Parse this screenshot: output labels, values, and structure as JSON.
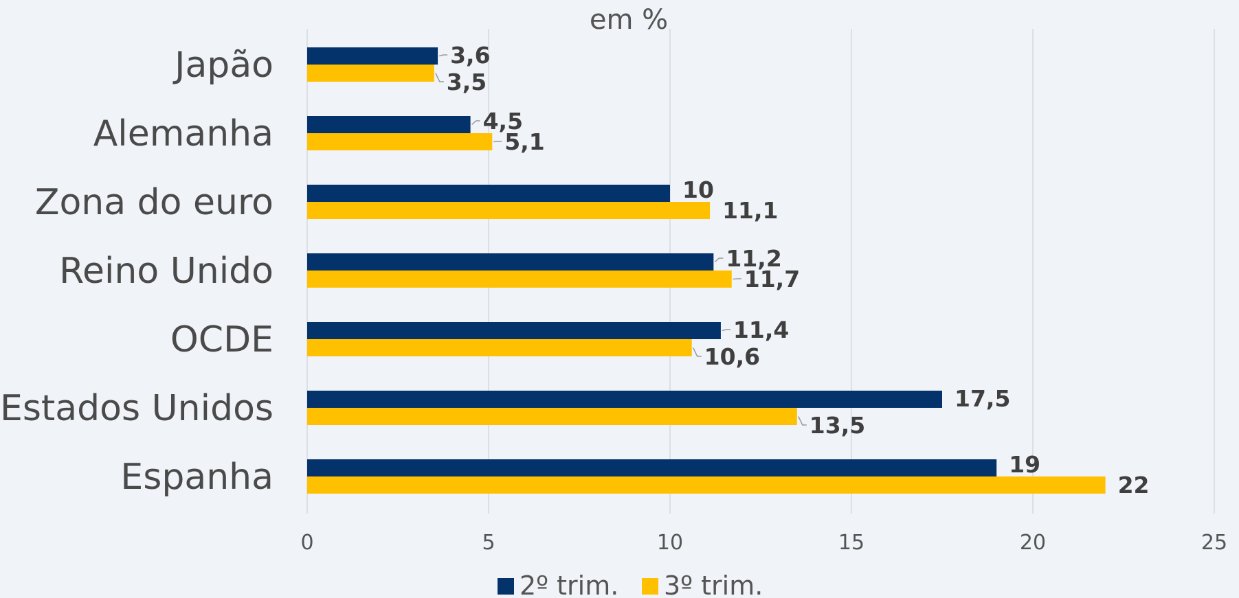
{
  "chart_data": {
    "type": "bar",
    "orientation": "horizontal",
    "title": "em %",
    "categories": [
      "Japão",
      "Alemanha",
      "Zona do euro",
      "Reino Unido",
      "OCDE",
      "Estados Unidos",
      "Espanha"
    ],
    "series": [
      {
        "name": "2º trim.",
        "color": "#04326b",
        "values": [
          3.6,
          4.5,
          10,
          11.2,
          11.4,
          17.5,
          19
        ],
        "labels": [
          "3,6",
          "4,5",
          "10",
          "11,2",
          "11,4",
          "17,5",
          "19"
        ]
      },
      {
        "name": "3º trim.",
        "color": "#ffc000",
        "values": [
          3.5,
          5.1,
          11.1,
          11.7,
          10.6,
          13.5,
          22
        ],
        "labels": [
          "3,5",
          "5,1",
          "11,1",
          "11,7",
          "10,6",
          "13,5",
          "22"
        ]
      }
    ],
    "xlim": [
      0,
      25
    ],
    "xticks": [
      0,
      5,
      10,
      15,
      20,
      25
    ],
    "grid": true,
    "legend_position": "bottom"
  }
}
